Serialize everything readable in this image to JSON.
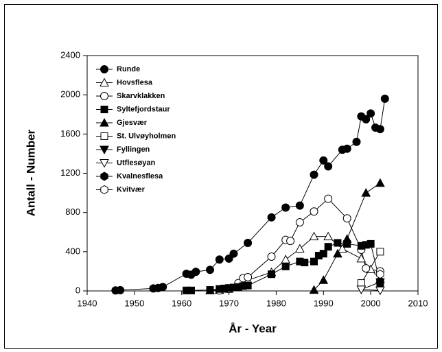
{
  "chart_data": {
    "type": "scatter-line",
    "x_label": "År  -  Year",
    "y_label": "Antall  -  Number",
    "xlim": [
      1940,
      2010
    ],
    "xticks": [
      1940,
      1950,
      1960,
      1970,
      1980,
      1990,
      2000,
      2010
    ],
    "ylim": [
      0,
      2400
    ],
    "yticks": [
      0,
      400,
      800,
      1200,
      1600,
      2000,
      2400
    ],
    "legend": "upper-left",
    "series": [
      {
        "name": "Runde",
        "marker": "circle",
        "filled": true,
        "color": "#000000",
        "x": [
          1946,
          1947,
          1954,
          1955,
          1956,
          1961,
          1962,
          1963,
          1966,
          1968,
          1970,
          1971,
          1974,
          1979,
          1982,
          1985,
          1988,
          1990,
          1991,
          1994,
          1995,
          1997,
          1998,
          1999,
          2000,
          2001,
          2002,
          2003
        ],
        "values": [
          5,
          8,
          25,
          30,
          40,
          175,
          165,
          195,
          215,
          320,
          330,
          380,
          490,
          750,
          850,
          870,
          1185,
          1330,
          1270,
          1440,
          1450,
          1520,
          1780,
          1750,
          1810,
          1665,
          1650,
          1960
        ]
      },
      {
        "name": "Hovsflesa",
        "marker": "triangle-up",
        "filled": false,
        "color": "#000000",
        "x": [
          1966,
          1968,
          1970,
          1972,
          1974,
          1979,
          1982,
          1985,
          1988,
          1991,
          1994,
          1998,
          2000,
          2002
        ],
        "values": [
          5,
          10,
          20,
          60,
          110,
          190,
          320,
          430,
          555,
          555,
          430,
          330,
          220,
          120
        ]
      },
      {
        "name": "Skarvklakken",
        "marker": "circle",
        "filled": false,
        "color": "#000000",
        "x": [
          1968,
          1970,
          1972,
          1973,
          1974,
          1979,
          1982,
          1983,
          1985,
          1988,
          1991,
          1995,
          1998,
          1999,
          2002
        ],
        "values": [
          5,
          20,
          80,
          130,
          140,
          350,
          520,
          510,
          700,
          810,
          940,
          740,
          420,
          230,
          200
        ]
      },
      {
        "name": "Syltefjordstaur",
        "marker": "square",
        "filled": true,
        "color": "#000000",
        "x": [
          1961,
          1962,
          1966,
          1968,
          1969,
          1970,
          1971,
          1972,
          1973,
          1974,
          1979,
          1982,
          1985,
          1986,
          1988,
          1989,
          1990,
          1991,
          1993,
          1995,
          1998,
          1999,
          2000,
          2002
        ],
        "values": [
          5,
          5,
          10,
          20,
          25,
          30,
          35,
          40,
          50,
          55,
          170,
          250,
          300,
          290,
          300,
          360,
          380,
          450,
          490,
          480,
          460,
          470,
          480,
          80
        ]
      },
      {
        "name": "Gjesvær",
        "marker": "triangle-up",
        "filled": true,
        "color": "#000000",
        "x": [
          1988,
          1990,
          1993,
          1995,
          1999,
          2002
        ],
        "values": [
          10,
          110,
          380,
          530,
          1000,
          1100
        ]
      },
      {
        "name": "St. Ulvøyholmen",
        "marker": "square",
        "filled": false,
        "color": "#000000",
        "x": [
          1998,
          2002
        ],
        "values": [
          80,
          400
        ]
      },
      {
        "name": "Fyllingen",
        "marker": "triangle-down",
        "filled": true,
        "color": "#000000",
        "x": [
          1998,
          2002
        ],
        "values": [
          15,
          90
        ]
      },
      {
        "name": "Utflesøyan",
        "marker": "triangle-down",
        "filled": false,
        "color": "#000000",
        "x": [
          1998,
          2002
        ],
        "values": [
          15,
          5
        ]
      },
      {
        "name": "Kvalnesflesa",
        "marker": "hexagon",
        "filled": true,
        "color": "#000000",
        "x": [
          2002
        ],
        "values": [
          100
        ]
      },
      {
        "name": "Kvitvær",
        "marker": "hexagon",
        "filled": false,
        "color": "#000000",
        "x": [
          2002
        ],
        "values": [
          170
        ]
      }
    ]
  }
}
